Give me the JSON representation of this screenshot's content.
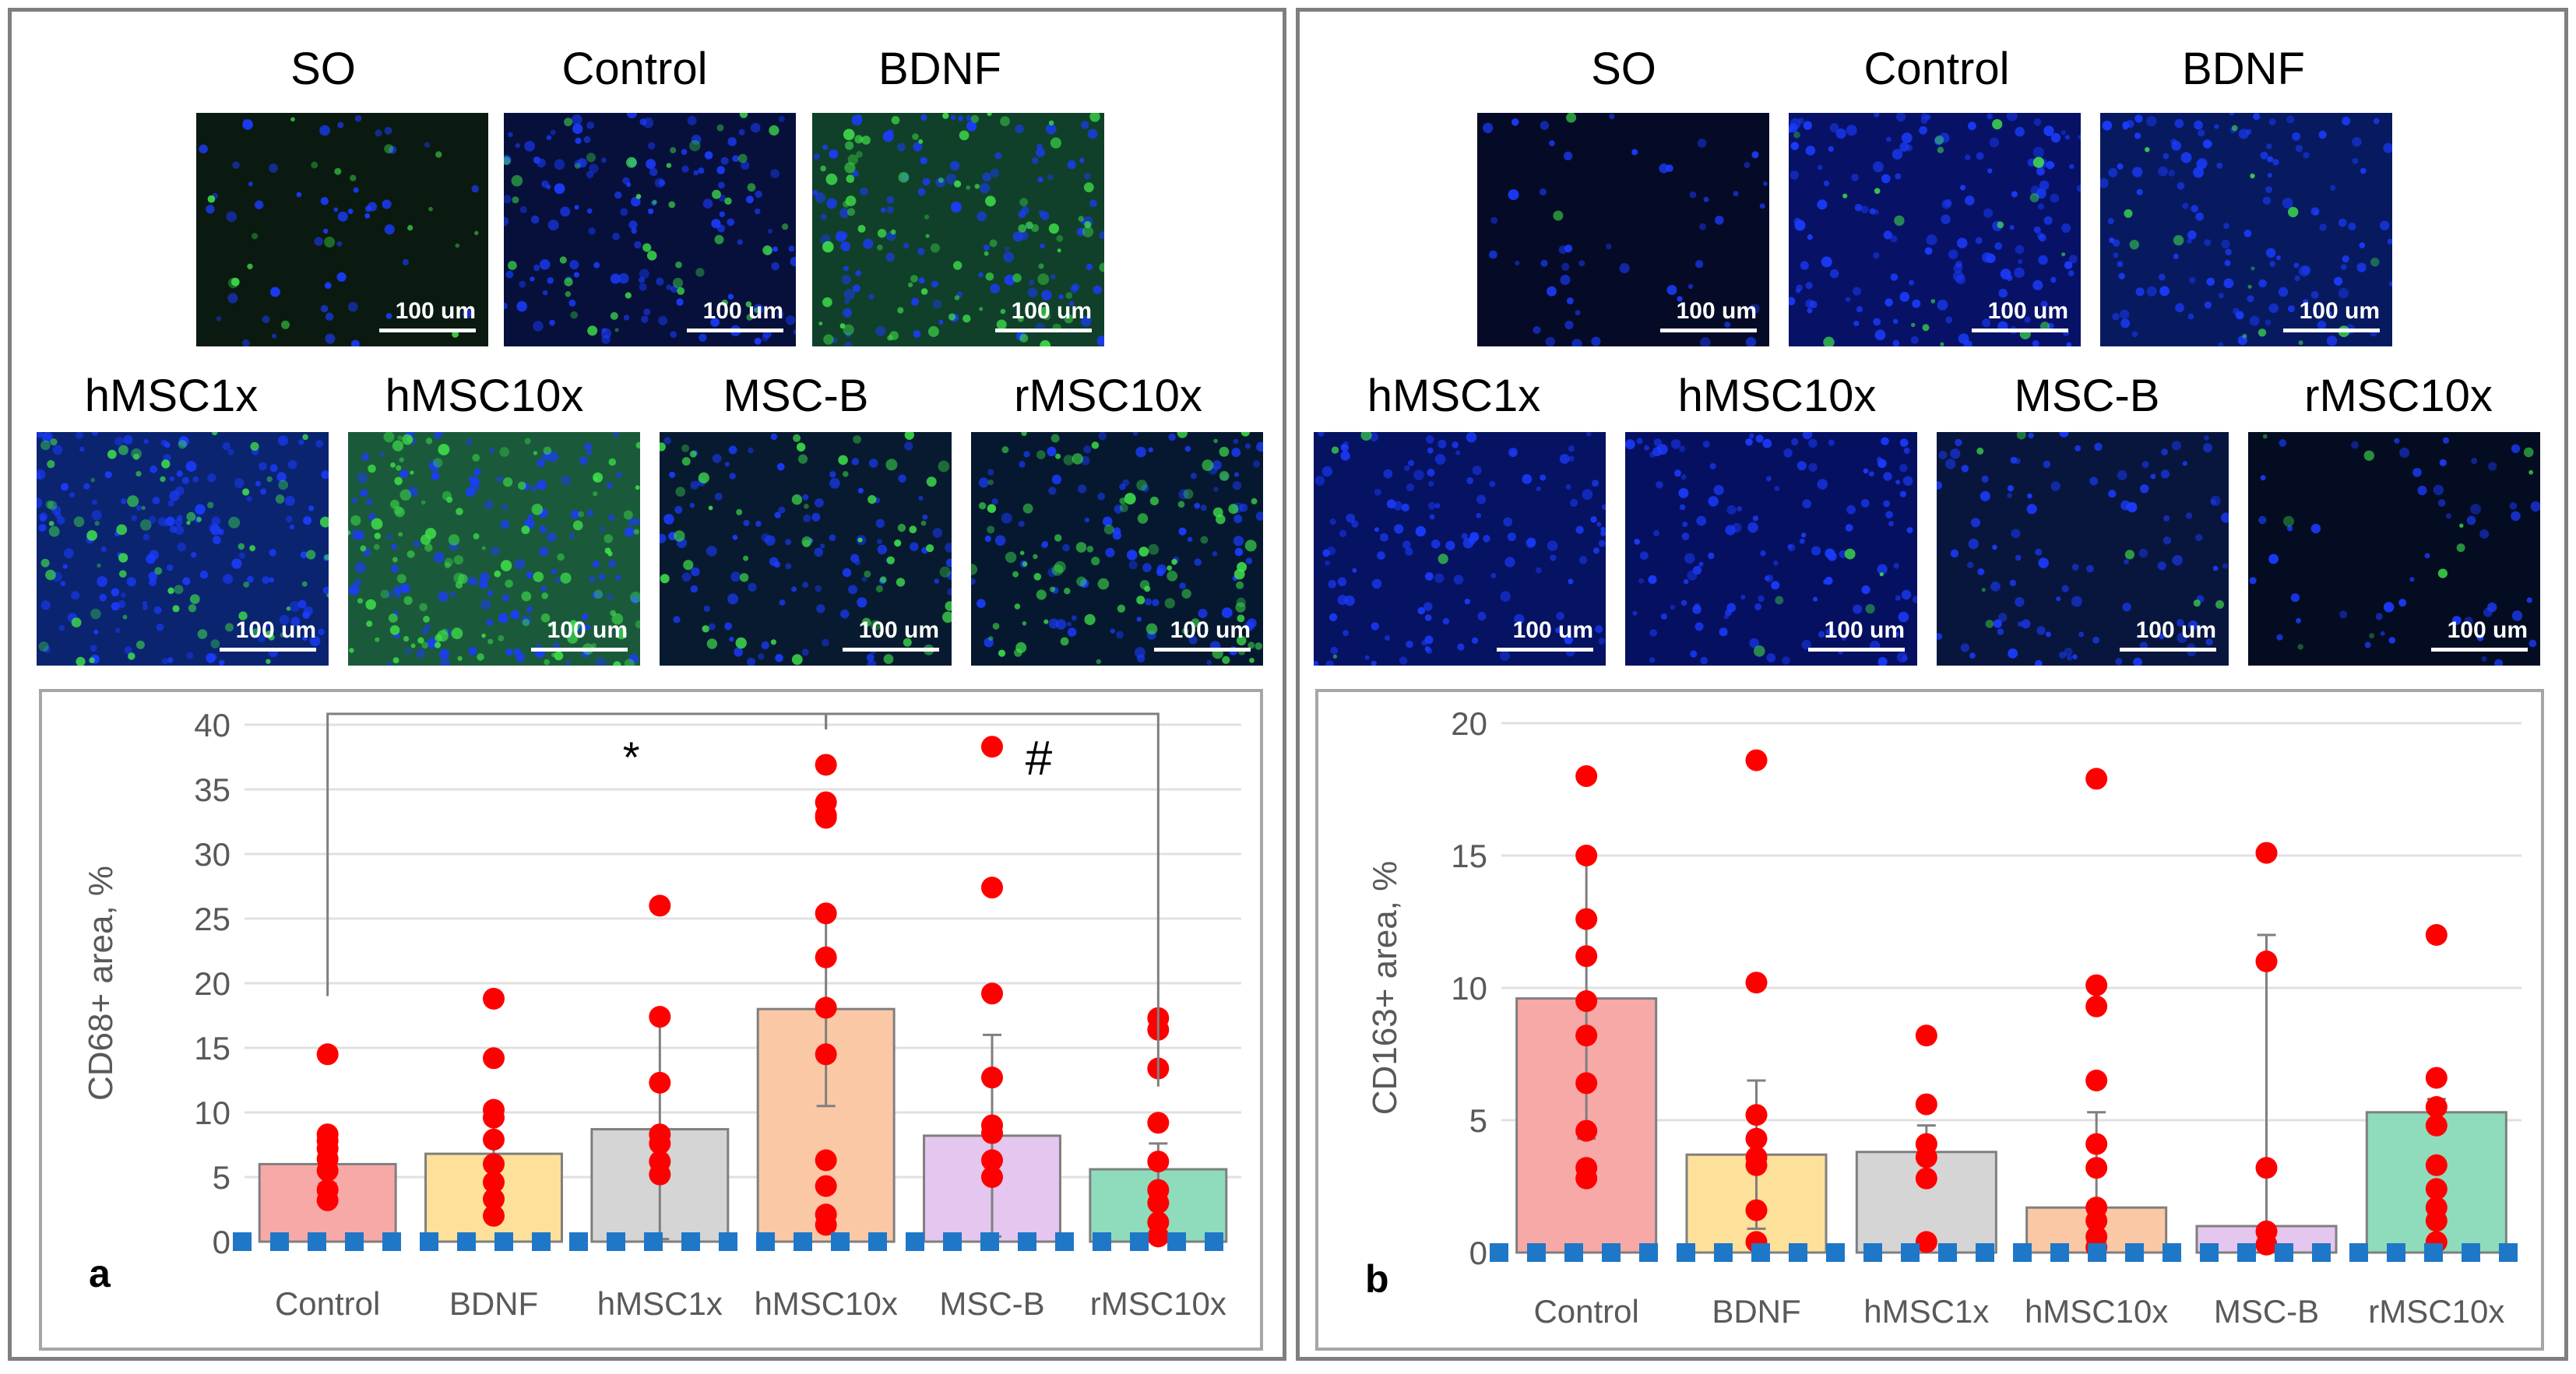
{
  "panels": [
    {
      "micrographs": [
        {
          "label": "SO",
          "scale": "100 um",
          "base": "#0a1a10",
          "green": 0.15,
          "blue": 0.3
        },
        {
          "label": "Control",
          "scale": "100 um",
          "base": "#06103a",
          "green": 0.35,
          "blue": 0.8
        },
        {
          "label": "BDNF",
          "scale": "100 um",
          "base": "#10402a",
          "green": 0.7,
          "blue": 0.7
        },
        {
          "label": "hMSC1x",
          "scale": "100 um",
          "base": "#0a2470",
          "green": 0.6,
          "blue": 0.9
        },
        {
          "label": "hMSC10x",
          "scale": "100 um",
          "base": "#1a5a3a",
          "green": 1.0,
          "blue": 0.8
        },
        {
          "label": "MSC-B",
          "scale": "100 um",
          "base": "#071a30",
          "green": 0.45,
          "blue": 0.6
        },
        {
          "label": "rMSC10x",
          "scale": "100 um",
          "base": "#051830",
          "green": 0.75,
          "blue": 0.6
        }
      ],
      "letter": "a"
    },
    {
      "micrographs": [
        {
          "label": "SO",
          "scale": "100 um",
          "base": "#050a26",
          "green": 0.02,
          "blue": 0.3
        },
        {
          "label": "Control",
          "scale": "100 um",
          "base": "#071266",
          "green": 0.15,
          "blue": 0.9
        },
        {
          "label": "BDNF",
          "scale": "100 um",
          "base": "#071a60",
          "green": 0.12,
          "blue": 0.8
        },
        {
          "label": "hMSC1x",
          "scale": "100 um",
          "base": "#061262",
          "green": 0.03,
          "blue": 0.8
        },
        {
          "label": "hMSC10x",
          "scale": "100 um",
          "base": "#061060",
          "green": 0.04,
          "blue": 0.8
        },
        {
          "label": "MSC-B",
          "scale": "100 um",
          "base": "#08163e",
          "green": 0.06,
          "blue": 0.6
        },
        {
          "label": "rMSC10x",
          "scale": "100 um",
          "base": "#040c22",
          "green": 0.08,
          "blue": 0.3
        }
      ],
      "letter": "b"
    }
  ],
  "chart_data": [
    {
      "type": "bar",
      "panel": "a",
      "ylabel": "CD68+ area, %",
      "ylim": [
        0,
        40
      ],
      "yticks": [
        0,
        5,
        10,
        15,
        20,
        25,
        30,
        35,
        40
      ],
      "grid": true,
      "categories": [
        "Control",
        "BDNF",
        "hMSC1x",
        "hMSC10x",
        "MSC-B",
        "rMSC10x"
      ],
      "values": [
        6,
        6.8,
        8.7,
        18,
        8.2,
        5.6
      ],
      "errors": [
        1.5,
        3.5,
        8.5,
        7.5,
        7.8,
        2.0
      ],
      "bar_colors": [
        "#f7a9a8",
        "#fde19a",
        "#d5d5d5",
        "#fbc8a6",
        "#e4c6ee",
        "#8fdcbc"
      ],
      "points": [
        [
          14.5,
          8.3,
          7.8,
          7.2,
          6.4,
          5.5,
          4.0,
          3.2
        ],
        [
          18.8,
          14.2,
          10.2,
          9.6,
          7.9,
          6.0,
          4.6,
          3.3,
          2.0
        ],
        [
          26.0,
          17.4,
          12.3,
          8.3,
          7.6,
          6.2,
          5.2
        ],
        [
          36.9,
          34.0,
          33.0,
          32.8,
          25.4,
          22.0,
          18.1,
          14.5,
          6.3,
          4.3,
          2.1,
          1.3
        ],
        [
          38.3,
          27.4,
          19.2,
          12.7,
          9.0,
          8.4,
          6.3,
          5.0
        ],
        [
          17.3,
          16.4,
          13.4,
          9.2,
          6.2,
          4.0,
          3.0,
          1.5,
          0.4
        ]
      ],
      "sig_marks": [
        "*",
        "#"
      ],
      "baseline_marker_color": "#1f77c8"
    },
    {
      "type": "bar",
      "panel": "b",
      "ylabel": "CD163+ area, %",
      "ylim": [
        0,
        20
      ],
      "yticks": [
        0,
        5,
        10,
        15,
        20
      ],
      "grid": true,
      "categories": [
        "Control",
        "BDNF",
        "hMSC1x",
        "hMSC10x",
        "MSC-B",
        "rMSC10x"
      ],
      "values": [
        9.6,
        3.7,
        3.8,
        1.7,
        1.0,
        5.3
      ],
      "errors": [
        5.3,
        2.8,
        1.0,
        3.6,
        11.0,
        0.5
      ],
      "bar_colors": [
        "#f7a9a8",
        "#fde19a",
        "#d5d5d5",
        "#fbc8a6",
        "#e4c6ee",
        "#8fdcbc"
      ],
      "points": [
        [
          18.0,
          15.0,
          12.6,
          11.2,
          9.5,
          8.2,
          6.4,
          4.6,
          3.2,
          2.8
        ],
        [
          18.6,
          10.2,
          5.2,
          4.3,
          3.6,
          3.3,
          1.6,
          0.4
        ],
        [
          8.2,
          5.6,
          4.1,
          3.6,
          2.8,
          0.4
        ],
        [
          17.9,
          10.1,
          9.3,
          6.5,
          4.1,
          3.2,
          1.7,
          1.2,
          0.6,
          0.2
        ],
        [
          15.1,
          11.0,
          3.2,
          0.8,
          0.3
        ],
        [
          12.0,
          6.6,
          5.5,
          4.8,
          3.3,
          2.4,
          1.7,
          1.2,
          0.4
        ]
      ],
      "sig_marks": [],
      "baseline_marker_color": "#1f77c8"
    }
  ]
}
